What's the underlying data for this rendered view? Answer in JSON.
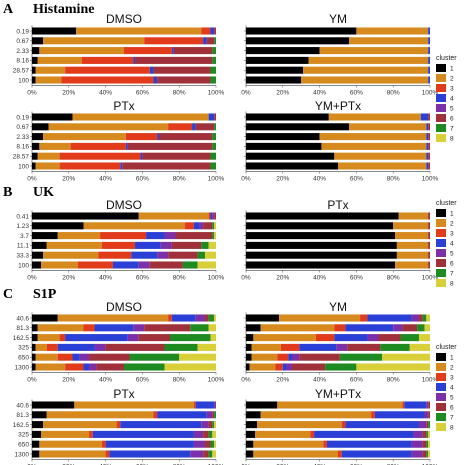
{
  "sections": [
    {
      "letter": "A",
      "title": "Histamine"
    },
    {
      "letter": "B",
      "title": "UK"
    },
    {
      "letter": "C",
      "title": "S1P"
    }
  ],
  "legend": {
    "title": "cluster",
    "entries": [
      {
        "label": "1",
        "color": "#000000"
      },
      {
        "label": "2",
        "color": "#d68a1e"
      },
      {
        "label": "3",
        "color": "#e23b1c"
      },
      {
        "label": "4",
        "color": "#2a3fd6"
      },
      {
        "label": "5",
        "color": "#7b2fa8"
      },
      {
        "label": "6",
        "color": "#a0303a"
      },
      {
        "label": "7",
        "color": "#1d8a22"
      },
      {
        "label": "8",
        "color": "#d9cf39"
      }
    ]
  },
  "chart_data": [
    {
      "type": "bar",
      "orientation": "horizontal",
      "stacked": true,
      "section": "A",
      "title": "DMSO",
      "categories": [
        "0.19",
        "0.67",
        "2.33",
        "8.16",
        "28.57",
        "100"
      ],
      "x_ticks": [
        "0%",
        "20%",
        "40%",
        "60%",
        "80%",
        "100%"
      ],
      "xlim": [
        0,
        100
      ],
      "series": [
        {
          "name": "1",
          "values": [
            24,
            6,
            4,
            3,
            2,
            2
          ]
        },
        {
          "name": "2",
          "values": [
            68,
            55,
            46,
            24,
            16,
            14
          ]
        },
        {
          "name": "3",
          "values": [
            5,
            32,
            26,
            28,
            46,
            50
          ]
        },
        {
          "name": "4",
          "values": [
            2,
            2,
            1,
            1,
            2,
            2
          ]
        },
        {
          "name": "5",
          "values": [
            0,
            0,
            0,
            0,
            0,
            0
          ]
        },
        {
          "name": "6",
          "values": [
            1,
            4,
            21,
            42,
            31,
            29
          ]
        },
        {
          "name": "7",
          "values": [
            0,
            1,
            2,
            2,
            3,
            3
          ]
        },
        {
          "name": "8",
          "values": [
            0,
            0,
            0,
            0,
            0,
            0
          ]
        }
      ]
    },
    {
      "type": "bar",
      "orientation": "horizontal",
      "stacked": true,
      "section": "A",
      "title": "YM",
      "categories": [
        "0.19",
        "0.67",
        "2.33",
        "8.16",
        "28.57",
        "100"
      ],
      "x_ticks": [
        "0%",
        "20%",
        "40%",
        "60%",
        "80%",
        "100%"
      ],
      "xlim": [
        0,
        100
      ],
      "series": [
        {
          "name": "1",
          "values": [
            60,
            56,
            40,
            34,
            31,
            30
          ]
        },
        {
          "name": "2",
          "values": [
            39,
            43,
            59,
            65,
            68,
            69
          ]
        },
        {
          "name": "3",
          "values": [
            0,
            0,
            0,
            0,
            0,
            0
          ]
        },
        {
          "name": "4",
          "values": [
            1,
            1,
            1,
            1,
            1,
            1
          ]
        },
        {
          "name": "5",
          "values": [
            0,
            0,
            0,
            0,
            0,
            0
          ]
        },
        {
          "name": "6",
          "values": [
            0,
            0,
            0,
            0,
            0,
            0
          ]
        },
        {
          "name": "7",
          "values": [
            0,
            0,
            0,
            0,
            0,
            0
          ]
        },
        {
          "name": "8",
          "values": [
            0,
            0,
            0,
            0,
            0,
            0
          ]
        }
      ]
    },
    {
      "type": "bar",
      "orientation": "horizontal",
      "stacked": true,
      "section": "A",
      "title": "PTx",
      "categories": [
        "0.19",
        "0.67",
        "2.33",
        "8.16",
        "28.57",
        "100"
      ],
      "x_ticks": [
        "0%",
        "20%",
        "40%",
        "60%",
        "80%",
        "100%"
      ],
      "xlim": [
        0,
        100
      ],
      "series": [
        {
          "name": "1",
          "values": [
            22,
            9,
            6,
            4,
            3,
            2
          ]
        },
        {
          "name": "2",
          "values": [
            74,
            65,
            45,
            17,
            12,
            13
          ]
        },
        {
          "name": "3",
          "values": [
            0,
            13,
            17,
            30,
            44,
            33
          ]
        },
        {
          "name": "4",
          "values": [
            3,
            2,
            1,
            1,
            1,
            1
          ]
        },
        {
          "name": "5",
          "values": [
            0,
            0,
            0,
            0,
            0,
            0
          ]
        },
        {
          "name": "6",
          "values": [
            1,
            10,
            29,
            46,
            37,
            48
          ]
        },
        {
          "name": "7",
          "values": [
            0,
            1,
            2,
            2,
            3,
            3
          ]
        },
        {
          "name": "8",
          "values": [
            0,
            0,
            0,
            0,
            0,
            0
          ]
        }
      ]
    },
    {
      "type": "bar",
      "orientation": "horizontal",
      "stacked": true,
      "section": "A",
      "title": "YM+PTx",
      "categories": [
        "0.19",
        "0.67",
        "2.33",
        "8.16",
        "28.57",
        "100"
      ],
      "x_ticks": [
        "0%",
        "20%",
        "40%",
        "60%",
        "80%",
        "100%"
      ],
      "xlim": [
        0,
        100
      ],
      "series": [
        {
          "name": "1",
          "values": [
            45,
            56,
            40,
            41,
            48,
            50
          ]
        },
        {
          "name": "2",
          "values": [
            50,
            42,
            58,
            57,
            50,
            48
          ]
        },
        {
          "name": "3",
          "values": [
            0,
            0,
            0,
            0,
            0,
            0
          ]
        },
        {
          "name": "4",
          "values": [
            4,
            1,
            1,
            1,
            1,
            1
          ]
        },
        {
          "name": "5",
          "values": [
            0,
            0,
            0,
            0,
            0,
            0
          ]
        },
        {
          "name": "6",
          "values": [
            1,
            1,
            1,
            1,
            1,
            1
          ]
        },
        {
          "name": "7",
          "values": [
            0,
            0,
            0,
            0,
            0,
            0
          ]
        },
        {
          "name": "8",
          "values": [
            0,
            0,
            0,
            0,
            0,
            0
          ]
        }
      ]
    },
    {
      "type": "bar",
      "orientation": "horizontal",
      "stacked": true,
      "section": "B",
      "title": "DMSO",
      "categories": [
        "0.41",
        "1.23",
        "3.7",
        "11.1",
        "33.3",
        "100"
      ],
      "x_ticks": [
        "0%",
        "20%",
        "40%",
        "60%",
        "80%",
        "100%"
      ],
      "xlim": [
        0,
        100
      ],
      "series": [
        {
          "name": "1",
          "values": [
            58,
            28,
            14,
            8,
            6,
            5
          ]
        },
        {
          "name": "2",
          "values": [
            38,
            55,
            23,
            30,
            30,
            20
          ]
        },
        {
          "name": "3",
          "values": [
            1,
            5,
            25,
            18,
            18,
            19
          ]
        },
        {
          "name": "4",
          "values": [
            1,
            3,
            10,
            14,
            14,
            14
          ]
        },
        {
          "name": "5",
          "values": [
            1,
            2,
            6,
            6,
            6,
            6
          ]
        },
        {
          "name": "6",
          "values": [
            1,
            5,
            20,
            16,
            16,
            18
          ]
        },
        {
          "name": "7",
          "values": [
            0,
            1,
            1,
            4,
            4,
            8
          ]
        },
        {
          "name": "8",
          "values": [
            0,
            1,
            1,
            4,
            6,
            10
          ]
        }
      ]
    },
    {
      "type": "bar",
      "orientation": "horizontal",
      "stacked": true,
      "section": "B",
      "title": "PTx",
      "categories": [
        "0.41",
        "1.23",
        "3.7",
        "11.1",
        "33.3",
        "100"
      ],
      "x_ticks": [
        "0%",
        "20%",
        "40%",
        "60%",
        "80%",
        "100%"
      ],
      "xlim": [
        0,
        100
      ],
      "series": [
        {
          "name": "1",
          "values": [
            83,
            80,
            81,
            82,
            82,
            81
          ]
        },
        {
          "name": "2",
          "values": [
            16,
            19,
            18,
            17,
            17,
            18
          ]
        },
        {
          "name": "3",
          "values": [
            0,
            0,
            0,
            0,
            0,
            0
          ]
        },
        {
          "name": "4",
          "values": [
            0,
            0,
            0,
            0,
            0,
            0
          ]
        },
        {
          "name": "5",
          "values": [
            0,
            0,
            0,
            0,
            0,
            0
          ]
        },
        {
          "name": "6",
          "values": [
            1,
            1,
            1,
            1,
            1,
            1
          ]
        },
        {
          "name": "7",
          "values": [
            0,
            0,
            0,
            0,
            0,
            0
          ]
        },
        {
          "name": "8",
          "values": [
            0,
            0,
            0,
            0,
            0,
            0
          ]
        }
      ]
    },
    {
      "type": "bar",
      "orientation": "horizontal",
      "stacked": true,
      "section": "C",
      "title": "DMSO",
      "categories": [
        "40.6",
        "81.3",
        "162.5",
        "325",
        "650",
        "1300"
      ],
      "x_ticks": [
        "0%",
        "20%",
        "40%",
        "60%",
        "80%",
        "100%"
      ],
      "xlim": [
        0,
        100
      ],
      "series": [
        {
          "name": "1",
          "values": [
            14,
            3,
            3,
            2,
            2,
            2
          ]
        },
        {
          "name": "2",
          "values": [
            60,
            25,
            12,
            6,
            12,
            16
          ]
        },
        {
          "name": "3",
          "values": [
            2,
            6,
            3,
            6,
            8,
            10
          ]
        },
        {
          "name": "4",
          "values": [
            13,
            21,
            34,
            20,
            4,
            3
          ]
        },
        {
          "name": "5",
          "values": [
            5,
            6,
            6,
            6,
            5,
            4
          ]
        },
        {
          "name": "6",
          "values": [
            2,
            25,
            17,
            32,
            22,
            15
          ]
        },
        {
          "name": "7",
          "values": [
            3,
            10,
            22,
            18,
            27,
            22
          ]
        },
        {
          "name": "8",
          "values": [
            1,
            4,
            3,
            10,
            20,
            28
          ]
        }
      ]
    },
    {
      "type": "bar",
      "orientation": "horizontal",
      "stacked": true,
      "section": "C",
      "title": "YM",
      "categories": [
        "40.6",
        "81.3",
        "162.5",
        "325",
        "650",
        "1300"
      ],
      "x_ticks": [
        "0%",
        "20%",
        "40%",
        "60%",
        "80%",
        "100%"
      ],
      "xlim": [
        0,
        100
      ],
      "series": [
        {
          "name": "1",
          "values": [
            18,
            8,
            4,
            3,
            3,
            2
          ]
        },
        {
          "name": "2",
          "values": [
            44,
            40,
            34,
            16,
            14,
            14
          ]
        },
        {
          "name": "3",
          "values": [
            4,
            6,
            10,
            10,
            6,
            4
          ]
        },
        {
          "name": "4",
          "values": [
            24,
            26,
            18,
            20,
            2,
            2
          ]
        },
        {
          "name": "5",
          "values": [
            4,
            5,
            6,
            6,
            4,
            3
          ]
        },
        {
          "name": "6",
          "values": [
            2,
            8,
            12,
            18,
            22,
            18
          ]
        },
        {
          "name": "7",
          "values": [
            2,
            4,
            10,
            16,
            23,
            17
          ]
        },
        {
          "name": "8",
          "values": [
            2,
            3,
            6,
            11,
            26,
            40
          ]
        }
      ]
    },
    {
      "type": "bar",
      "orientation": "horizontal",
      "stacked": true,
      "section": "C",
      "title": "PTx",
      "categories": [
        "40.6",
        "81.3",
        "162.5",
        "325",
        "650",
        "1300"
      ],
      "x_ticks": [
        "0%",
        "20%",
        "40%",
        "60%",
        "80%",
        "100%"
      ],
      "xlim": [
        0,
        100
      ],
      "series": [
        {
          "name": "1",
          "values": [
            23,
            8,
            6,
            5,
            4,
            4
          ]
        },
        {
          "name": "2",
          "values": [
            65,
            58,
            40,
            26,
            34,
            36
          ]
        },
        {
          "name": "3",
          "values": [
            1,
            2,
            2,
            2,
            2,
            2
          ]
        },
        {
          "name": "4",
          "values": [
            10,
            27,
            44,
            55,
            48,
            44
          ]
        },
        {
          "name": "5",
          "values": [
            1,
            3,
            4,
            5,
            6,
            7
          ]
        },
        {
          "name": "6",
          "values": [
            0,
            1,
            2,
            3,
            3,
            3
          ]
        },
        {
          "name": "7",
          "values": [
            0,
            1,
            1,
            2,
            2,
            2
          ]
        },
        {
          "name": "8",
          "values": [
            0,
            0,
            1,
            2,
            1,
            2
          ]
        }
      ]
    },
    {
      "type": "bar",
      "orientation": "horizontal",
      "stacked": true,
      "section": "C",
      "title": "YM+PTx",
      "categories": [
        "40.6",
        "81.3",
        "162.5",
        "325",
        "650",
        "1300"
      ],
      "x_ticks": [
        "0%",
        "20%",
        "40%",
        "60%",
        "80%",
        "100%"
      ],
      "xlim": [
        0,
        100
      ],
      "series": [
        {
          "name": "1",
          "values": [
            17,
            8,
            6,
            5,
            4,
            4
          ]
        },
        {
          "name": "2",
          "values": [
            68,
            60,
            46,
            30,
            38,
            46
          ]
        },
        {
          "name": "3",
          "values": [
            1,
            2,
            2,
            2,
            2,
            2
          ]
        },
        {
          "name": "4",
          "values": [
            12,
            27,
            40,
            54,
            46,
            38
          ]
        },
        {
          "name": "5",
          "values": [
            1,
            2,
            4,
            5,
            6,
            6
          ]
        },
        {
          "name": "6",
          "values": [
            1,
            1,
            1,
            2,
            2,
            2
          ]
        },
        {
          "name": "7",
          "values": [
            0,
            0,
            1,
            1,
            1,
            1
          ]
        },
        {
          "name": "8",
          "values": [
            0,
            0,
            0,
            1,
            1,
            1
          ]
        }
      ]
    }
  ]
}
